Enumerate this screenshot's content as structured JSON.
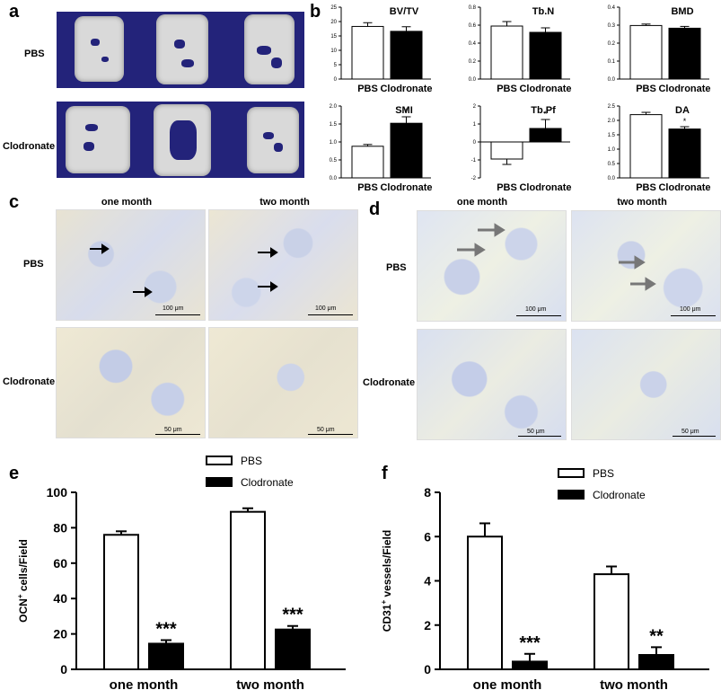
{
  "panel_letters": {
    "a": "a",
    "b": "b",
    "c": "c",
    "d": "d",
    "e": "e",
    "f": "f"
  },
  "panel_a": {
    "rows": [
      "PBS",
      "Clodronate"
    ]
  },
  "panel_c": {
    "cols": [
      "one month",
      "two month"
    ],
    "rows": [
      "PBS",
      "Clodronate"
    ],
    "scale_top": "100 μm",
    "scale_bottom": "50 μm"
  },
  "panel_d": {
    "cols": [
      "one month",
      "two month"
    ],
    "rows": [
      "PBS",
      "Clodronate"
    ],
    "scale_top": "100 μm",
    "scale_bottom": "50 μm"
  },
  "colors": {
    "pbs": "#ffffff",
    "clodronate": "#000000",
    "scan_bg": "#23237a"
  },
  "chart_data": [
    {
      "id": "bvtv",
      "type": "bar",
      "title": "BV/TV",
      "categories": [
        "PBS",
        "Clodronate"
      ],
      "values": [
        18.3,
        16.6
      ],
      "errors": [
        1.3,
        1.6
      ],
      "ylim": [
        0,
        25
      ],
      "yticks": [
        "0",
        "5",
        "10",
        "15",
        "20",
        "25"
      ],
      "tickvals": [
        0,
        5,
        10,
        15,
        20,
        25
      ],
      "annotations": [
        "",
        ""
      ]
    },
    {
      "id": "tbn",
      "type": "bar",
      "title": "Tb.N",
      "categories": [
        "PBS",
        "Clodronate"
      ],
      "values": [
        0.59,
        0.52
      ],
      "errors": [
        0.05,
        0.05
      ],
      "ylim": [
        0,
        0.8
      ],
      "yticks": [
        "0.0",
        "0.2",
        "0.4",
        "0.6",
        "0.8"
      ],
      "tickvals": [
        0,
        0.2,
        0.4,
        0.6,
        0.8
      ],
      "annotations": [
        "",
        ""
      ]
    },
    {
      "id": "bmd",
      "type": "bar",
      "title": "BMD",
      "categories": [
        "PBS",
        "Clodronate"
      ],
      "values": [
        0.298,
        0.283
      ],
      "errors": [
        0.008,
        0.01
      ],
      "ylim": [
        0,
        0.4
      ],
      "yticks": [
        "0.0",
        "0.1",
        "0.2",
        "0.3",
        "0.4"
      ],
      "tickvals": [
        0,
        0.1,
        0.2,
        0.3,
        0.4
      ],
      "annotations": [
        "",
        ""
      ]
    },
    {
      "id": "smi",
      "type": "bar",
      "title": "SMI",
      "categories": [
        "PBS",
        "Clodronate"
      ],
      "values": [
        0.88,
        1.52
      ],
      "errors": [
        0.05,
        0.18
      ],
      "ylim": [
        0,
        2.0
      ],
      "yticks": [
        "0.0",
        "0.5",
        "1.0",
        "1.5",
        "2.0"
      ],
      "tickvals": [
        0,
        0.5,
        1.0,
        1.5,
        2.0
      ],
      "annotations": [
        "",
        "*"
      ]
    },
    {
      "id": "tbpf",
      "type": "bar",
      "title": "Tb.Pf",
      "categories": [
        "PBS",
        "Clodronate"
      ],
      "values": [
        -0.95,
        0.75
      ],
      "errors": [
        0.3,
        0.5
      ],
      "ylim": [
        -2,
        2
      ],
      "yticks": [
        "-2",
        "-1",
        "0",
        "1",
        "2"
      ],
      "tickvals": [
        -2,
        -1,
        0,
        1,
        2
      ],
      "annotations": [
        "",
        "*"
      ]
    },
    {
      "id": "da",
      "type": "bar",
      "title": "DA",
      "categories": [
        "PBS",
        "Clodronate"
      ],
      "values": [
        2.2,
        1.7
      ],
      "errors": [
        0.08,
        0.08
      ],
      "ylim": [
        0,
        2.5
      ],
      "yticks": [
        "0.0",
        "0.5",
        "1.0",
        "1.5",
        "2.0",
        "2.5"
      ],
      "tickvals": [
        0,
        0.5,
        1.0,
        1.5,
        2.0,
        2.5
      ],
      "annotations": [
        "",
        "*"
      ]
    },
    {
      "id": "ocn",
      "type": "bar",
      "ylabel_main": "OCN",
      "ylabel_sup": "+",
      "ylabel_rest": " cells/Field",
      "categories": [
        "one month",
        "two month"
      ],
      "series": [
        {
          "name": "PBS",
          "values": [
            76,
            89
          ],
          "errors": [
            2,
            2
          ]
        },
        {
          "name": "Clodronate",
          "values": [
            14.5,
            22.5
          ],
          "errors": [
            2,
            2
          ]
        }
      ],
      "ylim": [
        0,
        100
      ],
      "yticks": [
        "0",
        "20",
        "40",
        "60",
        "80",
        "100"
      ],
      "tickvals": [
        0,
        20,
        40,
        60,
        80,
        100
      ],
      "annotations": [
        "***",
        "***"
      ],
      "legend": "top-center"
    },
    {
      "id": "cd31",
      "type": "bar",
      "ylabel_main": "CD31",
      "ylabel_sup": "+",
      "ylabel_rest": " vessels/Field",
      "categories": [
        "one month",
        "two month"
      ],
      "series": [
        {
          "name": "PBS",
          "values": [
            6.0,
            4.3
          ],
          "errors": [
            0.6,
            0.35
          ]
        },
        {
          "name": "Clodronate",
          "values": [
            0.35,
            0.65
          ],
          "errors": [
            0.35,
            0.35
          ]
        }
      ],
      "ylim": [
        0,
        8
      ],
      "yticks": [
        "0",
        "2",
        "4",
        "6",
        "8"
      ],
      "tickvals": [
        0,
        2,
        4,
        6,
        8
      ],
      "annotations": [
        "***",
        "**"
      ],
      "legend": "top-center"
    }
  ]
}
